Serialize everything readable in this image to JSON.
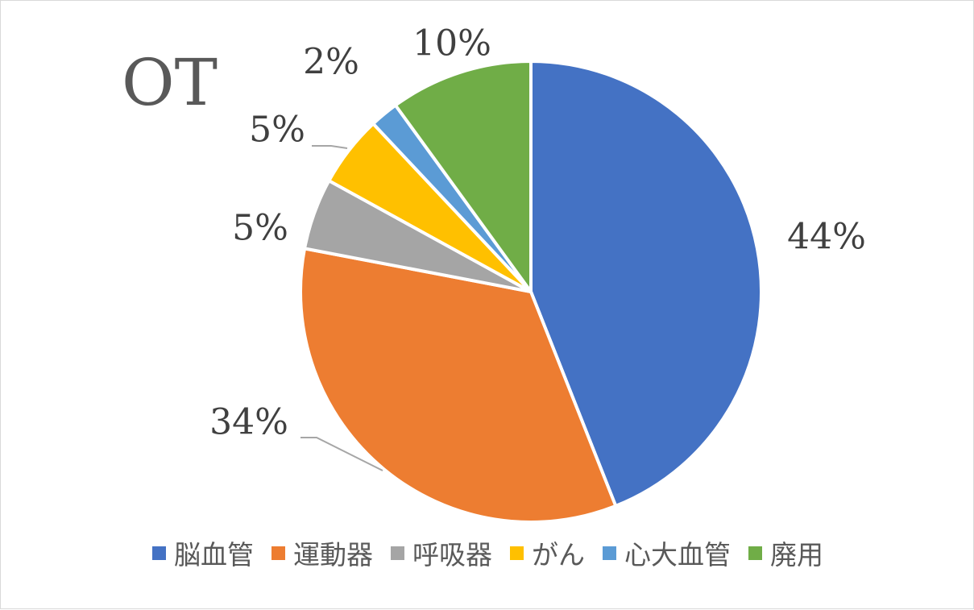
{
  "chart_data": {
    "type": "pie",
    "title": "OT",
    "categories": [
      "脳血管",
      "運動器",
      "呼吸器",
      "がん",
      "心大血管",
      "廃用"
    ],
    "values": [
      44,
      34,
      5,
      5,
      2,
      10
    ],
    "data_labels": [
      "44%",
      "34%",
      "5%",
      "5%",
      "2%",
      "10%"
    ],
    "colors": [
      "#4472c4",
      "#ed7d31",
      "#a5a5a5",
      "#ffc000",
      "#5b9bd5",
      "#70ad47"
    ],
    "legend_position": "bottom",
    "start_angle": "top",
    "direction": "clockwise"
  }
}
